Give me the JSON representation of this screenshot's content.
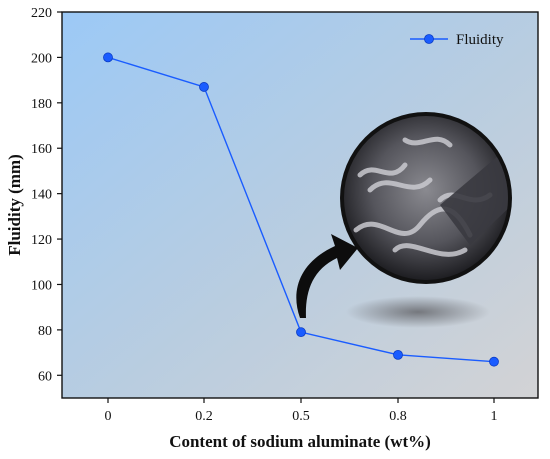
{
  "chart_data": {
    "type": "line",
    "x": [
      "0",
      "0.2",
      "0.5",
      "0.8",
      "1"
    ],
    "series": [
      {
        "name": "Fluidity",
        "values": [
          200,
          187,
          79,
          69,
          66
        ]
      }
    ],
    "xlabel": "Content of sodium aluminate (wt%)",
    "ylabel": "Fluidity (mm)",
    "ylim": [
      50,
      220
    ],
    "yticks": [
      60,
      80,
      100,
      120,
      140,
      160,
      180,
      200,
      220
    ],
    "legend_position": "top-right",
    "grid": false,
    "colors": {
      "series": "#1a5cff",
      "marker": "#1a5cff"
    },
    "annotations": [
      {
        "type": "photo-inset",
        "icon": "fluidity-sample-photo"
      },
      {
        "type": "curved-arrow",
        "icon": "curved-arrow-icon"
      }
    ]
  }
}
